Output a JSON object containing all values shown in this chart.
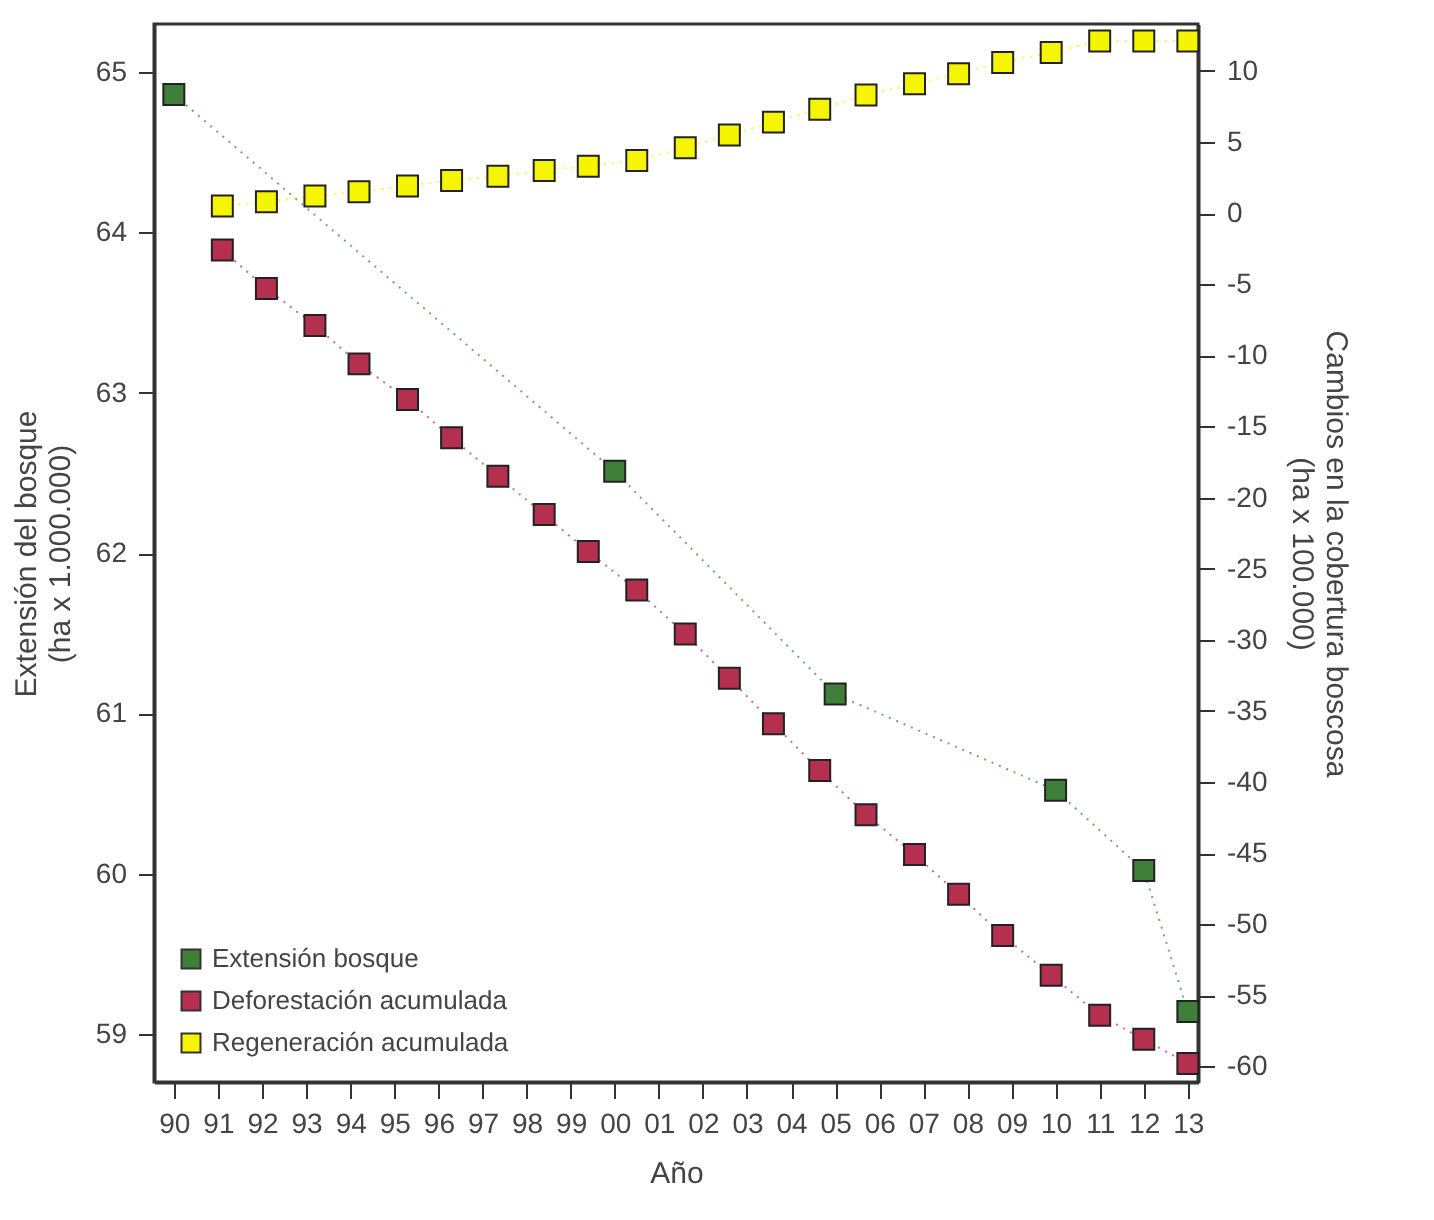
{
  "chart_data": {
    "type": "line",
    "xlabel": "Año",
    "ylabel": "Extensión del bosque\n(ha x 1.000.000)",
    "y2label": "Cambios en la cobertura boscosa\n(ha x 100.000)",
    "xlim": [
      1989.55,
      2013.23
    ],
    "xticks": [
      {
        "value": 1990,
        "label": "90"
      },
      {
        "value": 1991,
        "label": "91"
      },
      {
        "value": 1992,
        "label": "92"
      },
      {
        "value": 1993,
        "label": "93"
      },
      {
        "value": 1994,
        "label": "94"
      },
      {
        "value": 1995,
        "label": "95"
      },
      {
        "value": 1996,
        "label": "96"
      },
      {
        "value": 1997,
        "label": "97"
      },
      {
        "value": 1998,
        "label": "98"
      },
      {
        "value": 1999,
        "label": "99"
      },
      {
        "value": 2000,
        "label": "00"
      },
      {
        "value": 2001,
        "label": "01"
      },
      {
        "value": 2002,
        "label": "02"
      },
      {
        "value": 2003,
        "label": "03"
      },
      {
        "value": 2004,
        "label": "04"
      },
      {
        "value": 2005,
        "label": "05"
      },
      {
        "value": 2006,
        "label": "06"
      },
      {
        "value": 2007,
        "label": "07"
      },
      {
        "value": 2008,
        "label": "08"
      },
      {
        "value": 2009,
        "label": "09"
      },
      {
        "value": 2010,
        "label": "10"
      },
      {
        "value": 2011,
        "label": "11"
      },
      {
        "value": 2012,
        "label": "12"
      },
      {
        "value": 2013,
        "label": "13"
      }
    ],
    "ylim": [
      58.7,
      65.3
    ],
    "yticks": [
      59,
      60,
      61,
      62,
      63,
      64,
      65
    ],
    "y2lim": [
      -61.1,
      13.3
    ],
    "y2ticks": [
      -60,
      -55,
      -50,
      -45,
      -40,
      -35,
      -30,
      -25,
      -20,
      -15,
      -10,
      -5,
      0,
      5,
      10
    ],
    "marker": "square",
    "line_style": "dotted",
    "legend": "bottom left",
    "grid": false,
    "series": [
      {
        "name": "Extensión bosque",
        "color": "#3f7f3a",
        "x": [
          1990,
          2000,
          2005,
          2010,
          2012,
          2013
        ],
        "values": [
          64.86,
          62.51,
          61.12,
          60.52,
          60.02,
          59.14
        ]
      },
      {
        "name": "Deforestación acumulada",
        "color": "#b5304e",
        "axis": "y2",
        "x": [
          1991.1,
          1992.1,
          1993.2,
          1994.2,
          1995.3,
          1996.3,
          1997.35,
          1998.4,
          1999.4,
          2000.5,
          2001.6,
          2002.6,
          2003.6,
          2004.65,
          2005.7,
          2006.8,
          2007.8,
          2008.8,
          2009.9,
          2011.0,
          2012.0,
          2013.0
        ],
        "values": [
          -2.6,
          -5.3,
          -7.9,
          -10.6,
          -13.1,
          -15.8,
          -18.5,
          -21.2,
          -23.8,
          -26.5,
          -29.6,
          -32.7,
          -35.9,
          -39.2,
          -42.3,
          -45.1,
          -47.9,
          -50.8,
          -53.6,
          -56.4,
          -58.1,
          -59.8
        ]
      },
      {
        "name": "Regeneración acumulada",
        "color": "#f5f500",
        "axis": "y2",
        "x": [
          1991.1,
          1992.1,
          1993.2,
          1994.2,
          1995.3,
          1996.3,
          1997.35,
          1998.4,
          1999.4,
          2000.5,
          2001.6,
          2002.6,
          2003.6,
          2004.65,
          2005.7,
          2006.8,
          2007.8,
          2008.8,
          2009.9,
          2011.0,
          2012.0,
          2013.0
        ],
        "values": [
          0.5,
          0.8,
          1.2,
          1.5,
          1.9,
          2.3,
          2.6,
          3.0,
          3.3,
          3.7,
          4.6,
          5.5,
          6.4,
          7.3,
          8.3,
          9.1,
          9.8,
          10.6,
          11.3,
          12.1,
          12.1,
          12.1
        ]
      }
    ]
  }
}
